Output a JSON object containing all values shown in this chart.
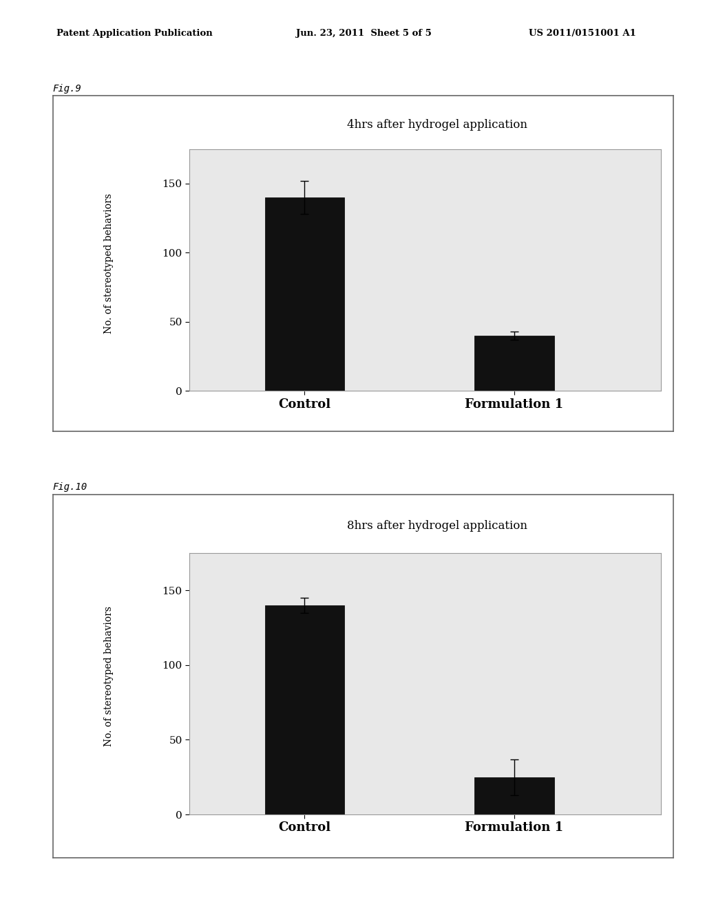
{
  "fig9": {
    "title": "4hrs after hydrogel application",
    "categories": [
      "Control",
      "Formulation 1"
    ],
    "values": [
      140,
      40
    ],
    "errors": [
      12,
      3
    ],
    "ylabel": "No. of stereotyped behaviors",
    "ylim": [
      0,
      175
    ],
    "yticks": [
      0,
      50,
      100,
      150
    ],
    "bar_color": "#111111",
    "fig_label": "Fig.9"
  },
  "fig10": {
    "title": "8hrs after hydrogel application",
    "categories": [
      "Control",
      "Formulation 1"
    ],
    "values": [
      140,
      25
    ],
    "errors": [
      5,
      12
    ],
    "ylabel": "No. of stereotyped behaviors",
    "ylim": [
      0,
      175
    ],
    "yticks": [
      0,
      50,
      100,
      150
    ],
    "bar_color": "#111111",
    "fig_label": "Fig.10"
  },
  "header_left": "Patent Application Publication",
  "header_mid": "Jun. 23, 2011  Sheet 5 of 5",
  "header_right": "US 2011/0151001 A1",
  "background_color": "#ffffff",
  "outer_box_color": "#666666",
  "inner_box_color": "#dddddd",
  "plot_bg_color": "#e8e8e8"
}
